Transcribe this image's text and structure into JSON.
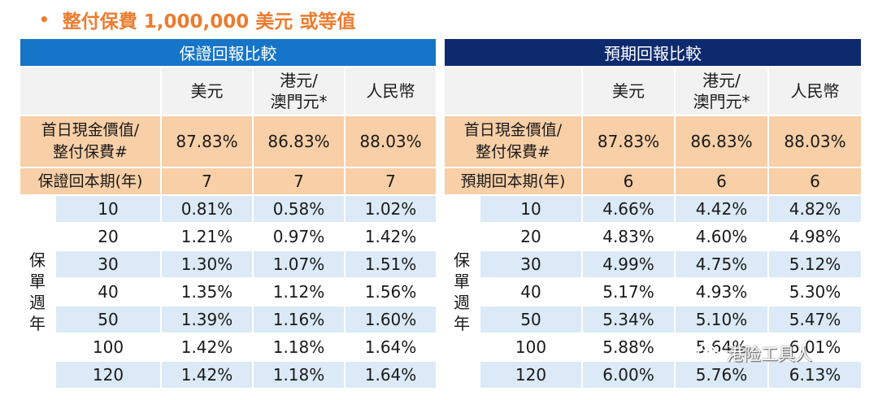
{
  "heading": {
    "bullet": "•",
    "text": "整付保費 1,000,000 美元 或等值"
  },
  "tables": [
    {
      "title": "保證回報比較",
      "currencies": [
        [
          "美元"
        ],
        [
          "港元/",
          "澳門元*"
        ],
        [
          "人民幣"
        ]
      ],
      "first_day_label": [
        "首日現金價值/",
        "整付保費#"
      ],
      "first_day_values": [
        "87.83%",
        "86.83%",
        "88.03%"
      ],
      "payback_label": "保證回本期(年)",
      "payback_values": [
        "7",
        "7",
        "7"
      ],
      "year_label": [
        "保",
        "單",
        "週",
        "年"
      ],
      "rows": [
        {
          "year": "10",
          "values": [
            "0.81%",
            "0.58%",
            "1.02%"
          ]
        },
        {
          "year": "20",
          "values": [
            "1.21%",
            "0.97%",
            "1.42%"
          ]
        },
        {
          "year": "30",
          "values": [
            "1.30%",
            "1.07%",
            "1.51%"
          ]
        },
        {
          "year": "40",
          "values": [
            "1.35%",
            "1.12%",
            "1.56%"
          ]
        },
        {
          "year": "50",
          "values": [
            "1.39%",
            "1.16%",
            "1.60%"
          ]
        },
        {
          "year": "100",
          "values": [
            "1.42%",
            "1.18%",
            "1.64%"
          ]
        },
        {
          "year": "120",
          "values": [
            "1.42%",
            "1.18%",
            "1.64%"
          ]
        }
      ]
    },
    {
      "title": "預期回報比較",
      "currencies": [
        [
          "美元"
        ],
        [
          "港元/",
          "澳門元*"
        ],
        [
          "人民幣"
        ]
      ],
      "first_day_label": [
        "首日現金價值/",
        "整付保費#"
      ],
      "first_day_values": [
        "87.83%",
        "86.83%",
        "88.03%"
      ],
      "payback_label": "預期回本期(年)",
      "payback_values": [
        "6",
        "6",
        "6"
      ],
      "year_label": [
        "保",
        "單",
        "週",
        "年"
      ],
      "rows": [
        {
          "year": "10",
          "values": [
            "4.66%",
            "4.42%",
            "4.82%"
          ]
        },
        {
          "year": "20",
          "values": [
            "4.83%",
            "4.60%",
            "4.98%"
          ]
        },
        {
          "year": "30",
          "values": [
            "4.99%",
            "4.75%",
            "5.12%"
          ]
        },
        {
          "year": "40",
          "values": [
            "5.17%",
            "4.93%",
            "5.30%"
          ]
        },
        {
          "year": "50",
          "values": [
            "5.34%",
            "5.10%",
            "5.47%"
          ]
        },
        {
          "year": "100",
          "values": [
            "5.88%",
            "5.64%",
            "6.01%"
          ]
        },
        {
          "year": "120",
          "values": [
            "6.00%",
            "5.76%",
            "6.13%"
          ]
        }
      ]
    }
  ],
  "watermark": {
    "icon": "wechat-icon",
    "text": "港险工具人"
  },
  "colors": {
    "heading": "#ec7c30",
    "left_title_bg": "#1675c8",
    "right_title_bg": "#0e2a6e",
    "peach_row": "#f8cfa6",
    "stripe": "#dbeaf6"
  }
}
